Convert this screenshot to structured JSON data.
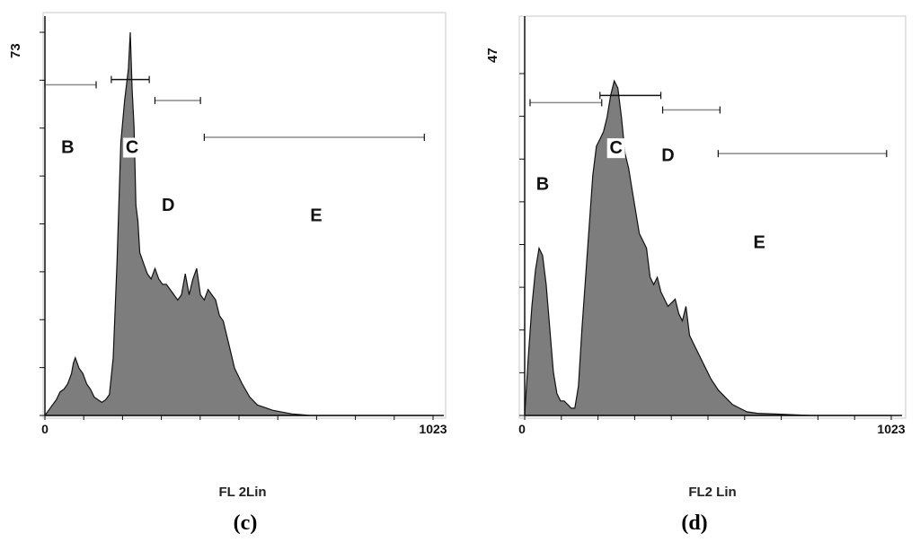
{
  "figure": {
    "colors": {
      "fill": "#7d7d7d",
      "line": "#111111",
      "marker": "#8a8a8a",
      "frame": "#c8c8c8"
    }
  },
  "chart_data": [
    {
      "type": "area",
      "panel_label": "(c)",
      "xlabel": "FL 2Lin",
      "ylabel": "",
      "xlim": [
        0,
        1023
      ],
      "ylim": [
        0,
        73
      ],
      "ymax_label": "73",
      "x_tick_labels": [
        "0",
        "1023"
      ],
      "x": [
        0,
        10,
        20,
        30,
        40,
        50,
        60,
        70,
        75,
        80,
        90,
        100,
        110,
        120,
        130,
        140,
        150,
        160,
        170,
        180,
        190,
        200,
        210,
        220,
        225,
        230,
        235,
        240,
        245,
        250,
        255,
        260,
        270,
        280,
        290,
        300,
        310,
        320,
        330,
        340,
        350,
        360,
        370,
        380,
        390,
        400,
        410,
        420,
        430,
        440,
        450,
        460,
        470,
        480,
        490,
        500,
        520,
        540,
        560,
        580,
        600,
        650,
        700,
        800,
        900,
        1023
      ],
      "counts": [
        0,
        1,
        2,
        3,
        4.5,
        5,
        6,
        8,
        10,
        11,
        9,
        8,
        6,
        5,
        3.5,
        3,
        2.5,
        3,
        4,
        11,
        29,
        52,
        60,
        66,
        73,
        62,
        55,
        40,
        37,
        31,
        30,
        29,
        27,
        26,
        28,
        26,
        25,
        25,
        24,
        23,
        22,
        23,
        27,
        23,
        26,
        28,
        23,
        22,
        24,
        23,
        22,
        19,
        18,
        15,
        12,
        9,
        6,
        3.5,
        2,
        1.5,
        1,
        0.3,
        0,
        0,
        0,
        0
      ],
      "regions": [
        {
          "label": "B",
          "label_x": 60,
          "label_y": 50,
          "marker_y": 63,
          "range": [
            0,
            135
          ]
        },
        {
          "label": "C",
          "label_x": 230,
          "label_y": 50,
          "marker_y": 64,
          "range": [
            175,
            275
          ]
        },
        {
          "label": "D",
          "label_x": 325,
          "label_y": 39,
          "marker_y": 60,
          "range": [
            290,
            410
          ]
        },
        {
          "label": "E",
          "label_x": 715,
          "label_y": 37,
          "marker_y": 53,
          "range": [
            420,
            1000
          ]
        }
      ]
    },
    {
      "type": "area",
      "panel_label": "(d)",
      "xlabel": "FL2 Lin",
      "ylabel": "",
      "xlim": [
        0,
        1023
      ],
      "ylim": [
        0,
        47
      ],
      "ymax_label": "47",
      "x_tick_labels": [
        "0",
        "1023"
      ],
      "x": [
        0,
        10,
        20,
        30,
        40,
        50,
        60,
        70,
        80,
        90,
        100,
        110,
        120,
        130,
        140,
        150,
        160,
        170,
        180,
        190,
        200,
        210,
        220,
        230,
        240,
        250,
        260,
        270,
        280,
        290,
        300,
        310,
        320,
        330,
        340,
        350,
        360,
        370,
        380,
        390,
        400,
        410,
        420,
        430,
        440,
        450,
        460,
        470,
        480,
        490,
        500,
        520,
        540,
        560,
        580,
        600,
        620,
        650,
        700,
        800,
        900,
        1023
      ],
      "counts": [
        0,
        8,
        15,
        20,
        23,
        22,
        18,
        12,
        6,
        3,
        2,
        2,
        1.5,
        1,
        1,
        4,
        12,
        19,
        26,
        33,
        37,
        38,
        39,
        41,
        44,
        46,
        45,
        41,
        36,
        34,
        31,
        28,
        25,
        24,
        23,
        19,
        18,
        19,
        17,
        16,
        15,
        15.5,
        16,
        14,
        13,
        15,
        11,
        10,
        9,
        8,
        7,
        5,
        3.5,
        2.5,
        1.5,
        1,
        0.5,
        0.3,
        0.2,
        0,
        0,
        0
      ],
      "regions": [
        {
          "label": "B",
          "label_x": 50,
          "label_y": 31,
          "marker_y": 43,
          "range": [
            15,
            215
          ]
        },
        {
          "label": "C",
          "label_x": 255,
          "label_y": 36,
          "marker_y": 44,
          "range": [
            210,
            380
          ]
        },
        {
          "label": "D",
          "label_x": 400,
          "label_y": 35,
          "marker_y": 42,
          "range": [
            385,
            545
          ]
        },
        {
          "label": "E",
          "label_x": 655,
          "label_y": 23,
          "marker_y": 36,
          "range": [
            540,
            1010
          ]
        }
      ]
    }
  ]
}
